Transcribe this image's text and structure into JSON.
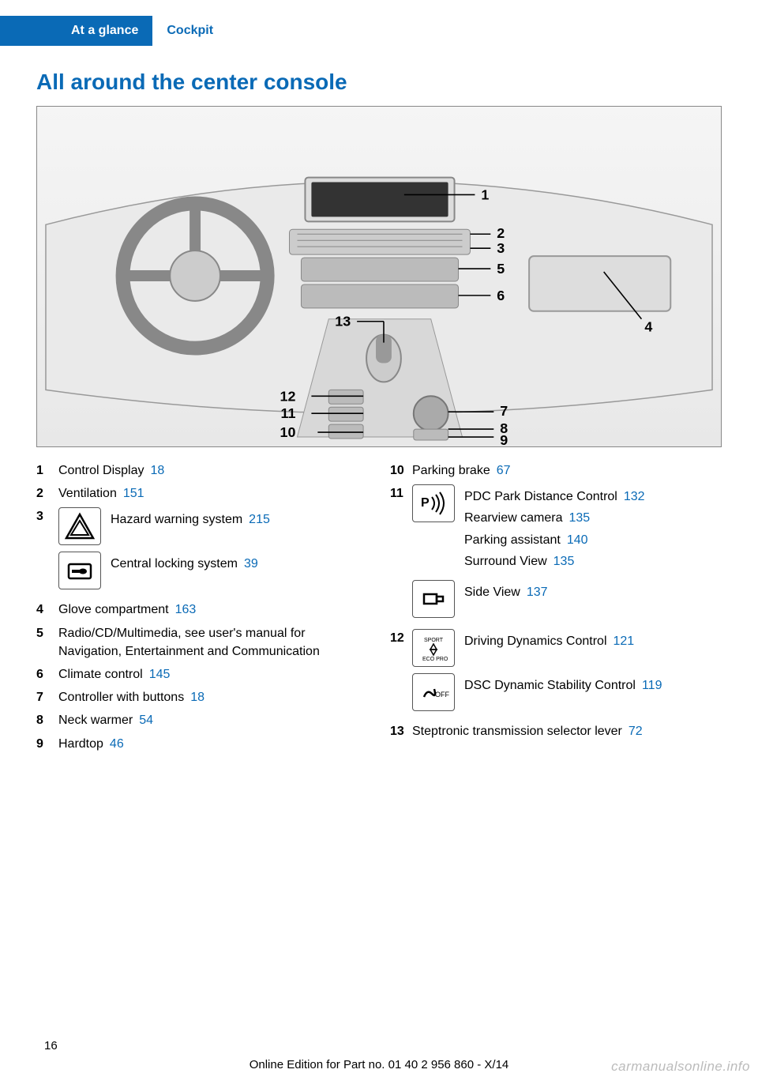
{
  "header": {
    "tab": "At a glance",
    "section": "Cockpit"
  },
  "title": "All around the center console",
  "diagram": {
    "callouts": [
      "1",
      "2",
      "3",
      "4",
      "5",
      "6",
      "7",
      "8",
      "9",
      "10",
      "11",
      "12",
      "13"
    ]
  },
  "left_items": [
    {
      "num": "1",
      "text": "Control Display",
      "ref": "18"
    },
    {
      "num": "2",
      "text": "Ventilation",
      "ref": "151"
    },
    {
      "num": "3",
      "subs": [
        {
          "icon": "hazard",
          "text": "Hazard warning system",
          "ref": "215"
        },
        {
          "icon": "lock",
          "text": "Central locking system",
          "ref": "39"
        }
      ]
    },
    {
      "num": "4",
      "text": "Glove compartment",
      "ref": "163"
    },
    {
      "num": "5",
      "text": "Radio/CD/Multimedia, see user's manual for Navigation, Entertainment and Commu­nication"
    },
    {
      "num": "6",
      "text": "Climate control",
      "ref": "145"
    },
    {
      "num": "7",
      "text": "Controller with buttons",
      "ref": "18"
    },
    {
      "num": "8",
      "text": "Neck warmer",
      "ref": "54"
    },
    {
      "num": "9",
      "text": "Hardtop",
      "ref": "46"
    }
  ],
  "right_items": [
    {
      "num": "10",
      "text": "Parking brake",
      "ref": "67"
    },
    {
      "num": "11",
      "subs": [
        {
          "icon": "pdc",
          "lines": [
            {
              "text": "PDC Park Distance Control",
              "ref": "132"
            },
            {
              "text": "Rearview camera",
              "ref": "135"
            },
            {
              "text": "Parking assistant",
              "ref": "140"
            },
            {
              "text": "Surround View",
              "ref": "135"
            }
          ]
        },
        {
          "icon": "sideview",
          "lines": [
            {
              "text": "Side View",
              "ref": "137"
            }
          ]
        }
      ]
    },
    {
      "num": "12",
      "subs": [
        {
          "icon": "sport",
          "lines": [
            {
              "text": "Driving Dynamics Control",
              "ref": "121"
            }
          ]
        },
        {
          "icon": "dsc",
          "lines": [
            {
              "text": "DSC Dynamic Stability Con­trol",
              "ref": "119"
            }
          ]
        }
      ]
    },
    {
      "num": "13",
      "text": "Steptronic transmission selector lever",
      "ref": "72"
    }
  ],
  "page_num": "16",
  "footer": "Online Edition for Part no. 01 40 2 956 860 - X/14",
  "watermark": "carmanualsonline.info"
}
